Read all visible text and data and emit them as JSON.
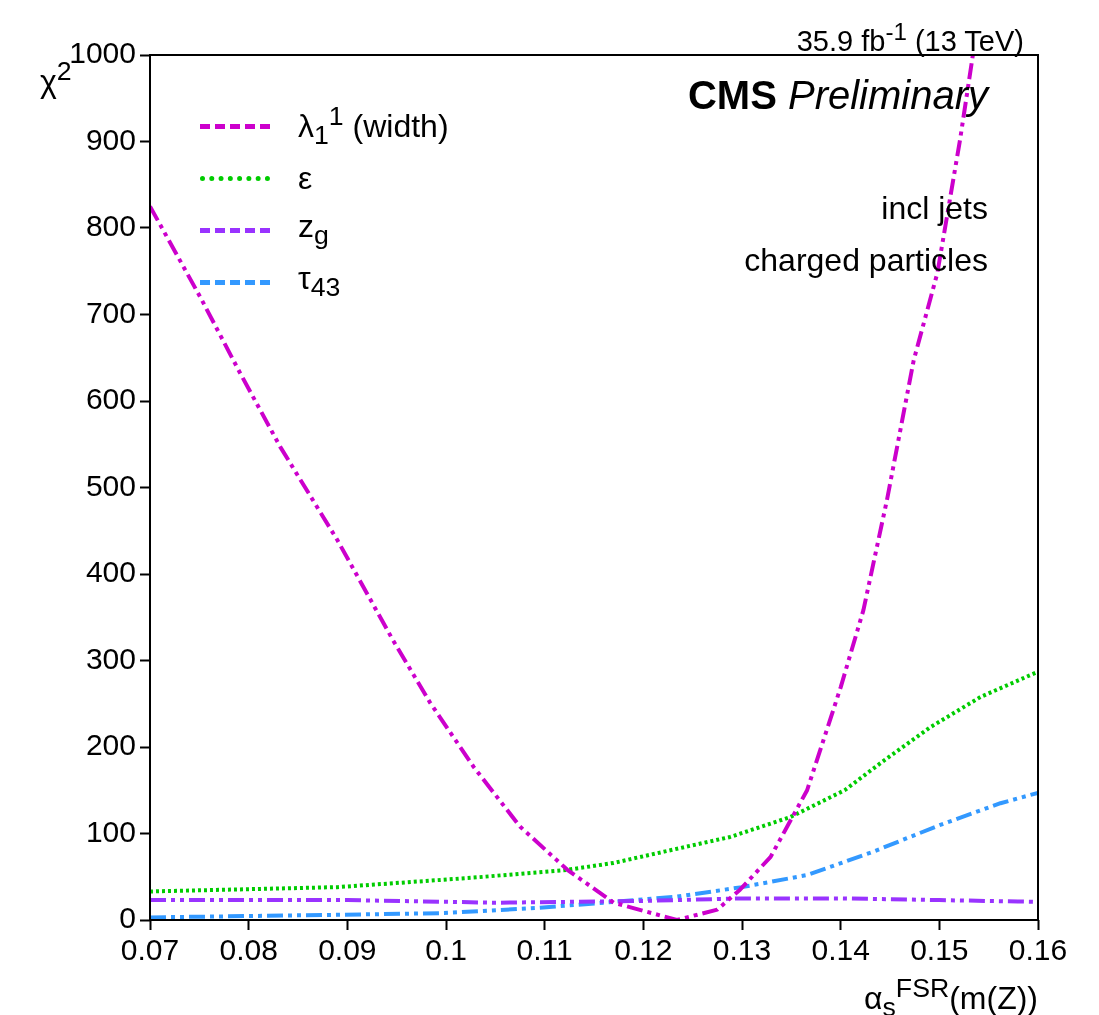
{
  "chart_data": {
    "type": "line",
    "title": "35.9 fb$^{-1}$ (13 TeV)",
    "xlabel": "α$_{s}$$^{FSR}$(m(Z))",
    "ylabel": "χ$^{2}$",
    "annotations": [
      "CMS Preliminary",
      "incl jets",
      "charged particles"
    ],
    "xlim": [
      0.07,
      0.16
    ],
    "xticks": [
      0.07,
      0.08,
      0.09,
      0.1,
      0.11,
      0.12,
      0.13,
      0.14,
      0.15,
      0.16
    ],
    "ylim": [
      0,
      1000
    ],
    "yticks": [
      0,
      100,
      200,
      300,
      400,
      500,
      600,
      700,
      800,
      900,
      1000
    ],
    "grid": false,
    "legend": "top left",
    "series": [
      {
        "name": "λ$_{1}$$^{1}$ (width)",
        "color": "#cc00cc",
        "line_style": "dashed",
        "x": [
          0.07,
          0.0751,
          0.0791,
          0.0832,
          0.089,
          0.0946,
          0.0984,
          0.1028,
          0.1075,
          0.1123,
          0.117,
          0.1234,
          0.1275,
          0.1298,
          0.1329,
          0.1366,
          0.14,
          0.1423,
          0.1447,
          0.1474,
          0.1498,
          0.1521,
          0.1534
        ],
        "values": [
          825,
          720,
          633,
          547,
          439,
          324,
          251,
          177,
          108,
          58,
          20,
          0,
          12,
          35,
          73,
          150,
          269,
          358,
          486,
          647,
          748,
          902,
          1000
        ]
      },
      {
        "name": "ε",
        "color": "#00cc00",
        "line_style": "dotted",
        "x": [
          0.07,
          0.089,
          0.1028,
          0.1123,
          0.117,
          0.1221,
          0.1288,
          0.1349,
          0.1404,
          0.144,
          0.1491,
          0.1542,
          0.16
        ],
        "values": [
          33,
          38,
          49,
          58,
          66,
          79,
          96,
          119,
          150,
          181,
          223,
          258,
          287
        ]
      },
      {
        "name": "z$_{g}$",
        "color": "#9933ff",
        "line_style": "dashed",
        "x": [
          0.07,
          0.09,
          0.105,
          0.12,
          0.13,
          0.14,
          0.15,
          0.16
        ],
        "values": [
          23,
          23,
          20,
          22,
          25,
          25,
          23,
          21
        ]
      },
      {
        "name": "τ$_{43}$",
        "color": "#3399ff",
        "line_style": "dashed",
        "x": [
          0.07,
          0.089,
          0.0998,
          0.1093,
          0.116,
          0.1234,
          0.13,
          0.1366,
          0.1433,
          0.1501,
          0.1562,
          0.16
        ],
        "values": [
          3,
          6,
          8,
          14,
          20,
          27,
          38,
          52,
          79,
          110,
          135,
          147
        ]
      }
    ]
  }
}
